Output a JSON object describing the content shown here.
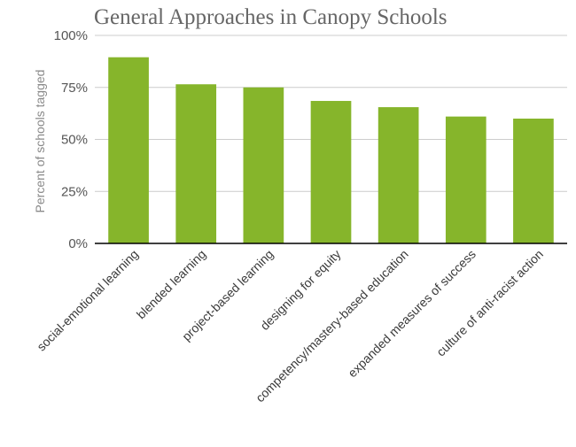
{
  "chart_data": {
    "type": "bar",
    "title": "General Approaches in Canopy Schools",
    "xlabel": "",
    "ylabel": "Percent of schools tagged",
    "ylim": [
      0,
      100
    ],
    "yticks": [
      0,
      25,
      50,
      75,
      100
    ],
    "ytick_labels": [
      "0%",
      "25%",
      "50%",
      "75%",
      "100%"
    ],
    "grid": true,
    "categories": [
      "social-emotional learning",
      "blended learning",
      "project-based learning",
      "designing for equity",
      "competency/mastery-based education",
      "expanded measures of success",
      "culture of anti-racist action"
    ],
    "values": [
      89.5,
      76.5,
      75,
      68.5,
      65.5,
      61,
      60
    ],
    "bar_color": "#86b52b"
  }
}
